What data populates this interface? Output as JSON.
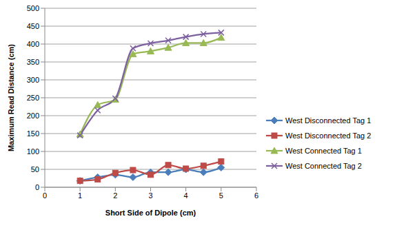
{
  "chart_data": {
    "type": "line",
    "x_label": "Short Side of Dipole (cm)",
    "y_label": "Maximum Read Distance (cm)",
    "xlim": [
      0,
      6
    ],
    "xticks": [
      0,
      1,
      2,
      3,
      4,
      5,
      6
    ],
    "ylim": [
      0,
      500
    ],
    "yticks": [
      0,
      50,
      100,
      150,
      200,
      250,
      300,
      350,
      400,
      450,
      500
    ],
    "grid": true,
    "legend": "right",
    "x": [
      1,
      1.5,
      2,
      2.5,
      3,
      3.5,
      4,
      4.5,
      5
    ],
    "series": [
      {
        "name": "West Disconnected Tag 1",
        "color": "#4a7ebb",
        "marker": "diamond",
        "line_style": "smooth",
        "values": [
          18,
          28,
          35,
          28,
          42,
          42,
          50,
          42,
          55
        ]
      },
      {
        "name": "West Disconnected Tag 2",
        "color": "#be4b48",
        "marker": "square",
        "line_style": "smooth",
        "values": [
          18,
          22,
          40,
          48,
          35,
          62,
          52,
          60,
          72
        ]
      },
      {
        "name": "West Connected Tag 1",
        "color": "#98b954",
        "marker": "triangle",
        "line_style": "smooth",
        "values": [
          148,
          230,
          245,
          372,
          380,
          390,
          403,
          403,
          418
        ]
      },
      {
        "name": "West Connected Tag 2",
        "color": "#7d60a0",
        "marker": "x",
        "line_style": "smooth",
        "values": [
          145,
          215,
          248,
          388,
          402,
          410,
          420,
          428,
          432
        ]
      }
    ]
  }
}
